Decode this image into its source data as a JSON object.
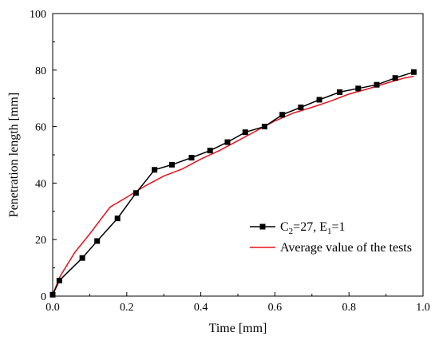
{
  "chart_data": {
    "type": "line",
    "xlabel": "Time [mm]",
    "ylabel": "Penetration length [mm]",
    "xlim": [
      0.0,
      1.0
    ],
    "ylim": [
      0,
      100
    ],
    "x_ticks": [
      "0.0",
      "0.2",
      "0.4",
      "0.6",
      "0.8",
      "1.0"
    ],
    "y_ticks": [
      "0",
      "20",
      "40",
      "60",
      "80",
      "100"
    ],
    "legend_position": "bottom-right",
    "series": [
      {
        "name_parts": {
          "c_base": "C",
          "c_sub": "2",
          "c_val": "=27, E",
          "e_sub": "1",
          "e_val": "=1"
        },
        "name": "C2=27, E1=1",
        "color": "#000000",
        "marker": "square",
        "x": [
          0.0,
          0.018,
          0.08,
          0.12,
          0.175,
          0.225,
          0.275,
          0.322,
          0.375,
          0.425,
          0.472,
          0.52,
          0.572,
          0.62,
          0.67,
          0.72,
          0.775,
          0.825,
          0.875,
          0.925,
          0.975
        ],
        "y": [
          0.5,
          5.5,
          13.5,
          19.5,
          27.5,
          36.5,
          44.7,
          46.5,
          49.0,
          51.5,
          54.5,
          58.0,
          60.0,
          64.2,
          66.8,
          69.5,
          72.2,
          73.5,
          74.8,
          77.2,
          79.3
        ]
      },
      {
        "name": "Average value of the tests",
        "color": "#e8101a",
        "marker": "none",
        "x": [
          0.0,
          0.02,
          0.06,
          0.1,
          0.155,
          0.2,
          0.25,
          0.3,
          0.35,
          0.4,
          0.45,
          0.5,
          0.55,
          0.6,
          0.65,
          0.7,
          0.75,
          0.8,
          0.85,
          0.9,
          0.95,
          0.975
        ],
        "y": [
          0.5,
          7.0,
          15.5,
          22.0,
          31.5,
          35.0,
          39.0,
          42.5,
          45.0,
          48.5,
          51.5,
          55.0,
          58.5,
          62.0,
          64.8,
          66.8,
          69.0,
          71.5,
          73.3,
          75.3,
          77.2,
          77.8
        ]
      }
    ]
  }
}
